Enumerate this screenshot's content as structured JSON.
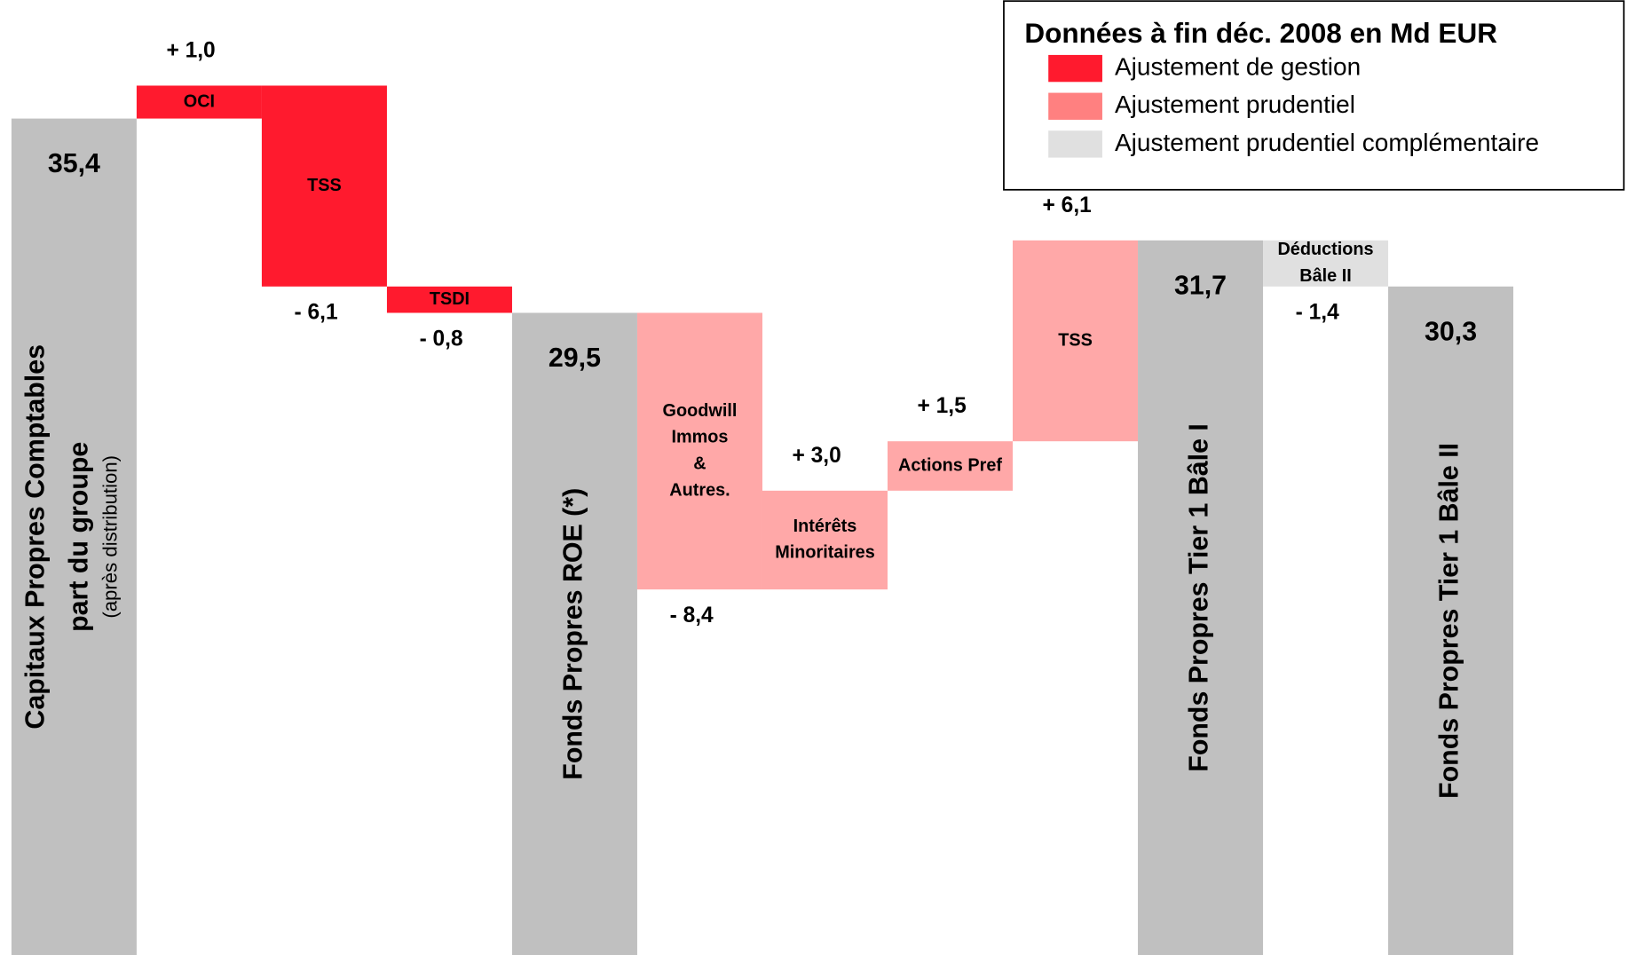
{
  "chart_data": {
    "type": "waterfall",
    "categories": [
      [
        "Capitaux Propres Comptables",
        "part du groupe"
      ],
      [
        "OCI"
      ],
      [
        "TSS"
      ],
      [
        "TSDI"
      ],
      [
        "Fonds Propres ROE (*)"
      ],
      [
        "Goodwill",
        "Immos",
        "&",
        "Autres."
      ],
      [
        "Intérêts",
        "Minoritaires"
      ],
      [
        "Actions Pref"
      ],
      [
        "TSS"
      ],
      [
        "Fonds Propres Tier 1 Bâle I"
      ],
      [
        "Déductions",
        "Bâle II"
      ],
      [
        "Fonds Propres Tier 1 Bâle II"
      ]
    ],
    "category_notes": [
      "(après distribution)",
      null,
      null,
      null,
      null,
      null,
      null,
      null,
      null,
      null,
      null,
      null
    ],
    "measure": [
      "absolute",
      "relative",
      "relative",
      "relative",
      "absolute",
      "relative",
      "relative",
      "relative",
      "relative",
      "absolute",
      "relative",
      "absolute"
    ],
    "values": [
      35.4,
      1.0,
      -6.1,
      -0.8,
      29.5,
      -8.4,
      3.0,
      1.5,
      6.1,
      31.7,
      -1.4,
      30.3
    ],
    "value_labels": [
      "35,4",
      "+ 1,0",
      "- 6,1",
      "- 0,8",
      "29,5",
      "- 8,4",
      "+ 3,0",
      "+ 1,5",
      "+ 6,1",
      "31,7",
      "- 1,4",
      "30,3"
    ],
    "colors": [
      "#c0c0c0",
      "#ff1a2e",
      "#ff1a2e",
      "#ff1a2e",
      "#c0c0c0",
      "#ffa8a8",
      "#ffa8a8",
      "#ffa8a8",
      "#ffa8a8",
      "#c0c0c0",
      "#e0e0e0",
      "#c0c0c0"
    ],
    "ylim": [
      10,
      39
    ],
    "legend_title": "Données à fin déc. 2008 en Md EUR",
    "legend": [
      {
        "name": "Ajustement de gestion",
        "color": "#ff1a2e"
      },
      {
        "name": "Ajustement prudentiel",
        "color": "#ff8080"
      },
      {
        "name": "Ajustement prudentiel complémentaire",
        "color": "#e0e0e0"
      }
    ],
    "legend_position": "upper right"
  }
}
